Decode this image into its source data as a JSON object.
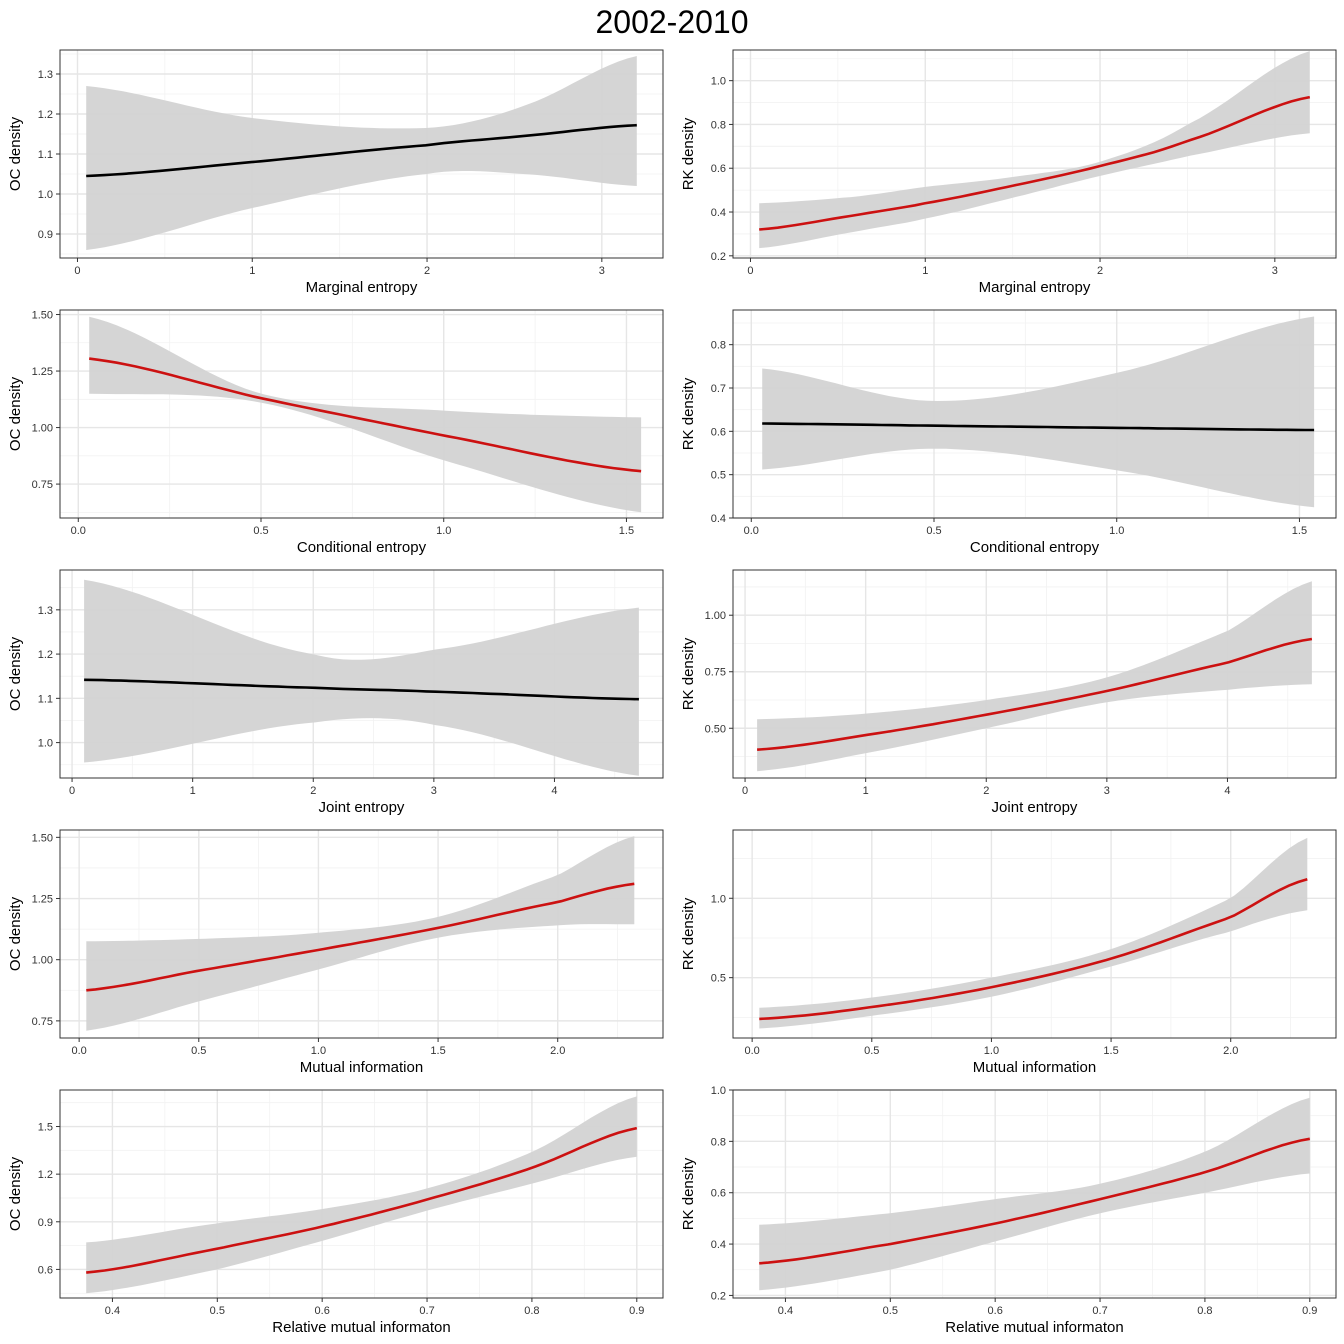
{
  "title": "2002-2010",
  "colors": {
    "significant": "#cc1111",
    "nonsignificant": "#000000",
    "ribbon": "#d3d3d3",
    "grid_major": "#e6e6e6",
    "grid_minor": "#f2f2f2",
    "border": "#333333"
  },
  "chart_data": [
    {
      "type": "line",
      "panel": "marginal-oc",
      "xlabel": "Marginal entropy",
      "ylabel": "OC density",
      "xlim": [
        -0.1,
        3.35
      ],
      "ylim": [
        0.84,
        1.36
      ],
      "xticks": [
        0,
        1,
        2,
        3
      ],
      "xtick_labels": [
        "0",
        "1",
        "2",
        "3"
      ],
      "yticks": [
        0.9,
        1.0,
        1.1,
        1.2,
        1.3
      ],
      "ytick_labels": [
        "0.9",
        "1.0",
        "1.1",
        "1.2",
        "1.3"
      ],
      "line_color": "nonsignificant",
      "x": [
        0.05,
        1.0,
        2.0,
        2.55,
        3.2
      ],
      "y": [
        1.045,
        1.08,
        1.122,
        1.145,
        1.172
      ],
      "lower": [
        0.86,
        0.965,
        1.05,
        1.05,
        1.02
      ],
      "upper": [
        1.27,
        1.19,
        1.165,
        1.22,
        1.345
      ]
    },
    {
      "type": "line",
      "panel": "marginal-rk",
      "xlabel": "Marginal entropy",
      "ylabel": "RK density",
      "xlim": [
        -0.1,
        3.35
      ],
      "ylim": [
        0.19,
        1.14
      ],
      "xticks": [
        0,
        1,
        2,
        3
      ],
      "xtick_labels": [
        "0",
        "1",
        "2",
        "3"
      ],
      "yticks": [
        0.2,
        0.4,
        0.6,
        0.8,
        1.0
      ],
      "ytick_labels": [
        "0.2",
        "0.4",
        "0.6",
        "0.8",
        "1.0"
      ],
      "line_color": "significant",
      "x": [
        0.05,
        0.6,
        1.0,
        1.5,
        2.0,
        2.5,
        3.2
      ],
      "y": [
        0.32,
        0.385,
        0.44,
        0.52,
        0.61,
        0.725,
        0.925
      ],
      "lower": [
        0.235,
        0.31,
        0.37,
        0.465,
        0.565,
        0.655,
        0.76
      ],
      "upper": [
        0.44,
        0.47,
        0.515,
        0.56,
        0.63,
        0.8,
        1.135
      ]
    },
    {
      "type": "line",
      "panel": "conditional-oc",
      "xlabel": "Conditional entropy",
      "ylabel": "OC density",
      "xlim": [
        -0.05,
        1.6
      ],
      "ylim": [
        0.6,
        1.52
      ],
      "xticks": [
        0,
        0.5,
        1.0,
        1.5
      ],
      "xtick_labels": [
        "0.0",
        "0.5",
        "1.0",
        "1.5"
      ],
      "yticks": [
        0.75,
        1.0,
        1.25,
        1.5
      ],
      "ytick_labels": [
        "0.75",
        "1.00",
        "1.25",
        "1.50"
      ],
      "line_color": "significant",
      "x": [
        0.03,
        0.5,
        1.0,
        1.54
      ],
      "y": [
        1.305,
        1.13,
        0.965,
        0.807
      ],
      "lower": [
        1.15,
        1.11,
        0.855,
        0.625
      ],
      "upper": [
        1.49,
        1.15,
        1.075,
        1.045
      ]
    },
    {
      "type": "line",
      "panel": "conditional-rk",
      "xlabel": "Conditional entropy",
      "ylabel": "RK density",
      "xlim": [
        -0.05,
        1.6
      ],
      "ylim": [
        0.4,
        0.88
      ],
      "xticks": [
        0,
        0.5,
        1.0,
        1.5
      ],
      "xtick_labels": [
        "0.0",
        "0.5",
        "1.0",
        "1.5"
      ],
      "yticks": [
        0.4,
        0.5,
        0.6,
        0.7,
        0.8
      ],
      "ytick_labels": [
        "0.4",
        "0.5",
        "0.6",
        "0.7",
        "0.8"
      ],
      "line_color": "nonsignificant",
      "x": [
        0.03,
        0.5,
        1.0,
        1.54
      ],
      "y": [
        0.618,
        0.613,
        0.608,
        0.603
      ],
      "lower": [
        0.512,
        0.56,
        0.51,
        0.425
      ],
      "upper": [
        0.745,
        0.67,
        0.735,
        0.865
      ]
    },
    {
      "type": "line",
      "panel": "joint-oc",
      "xlabel": "Joint entropy",
      "ylabel": "OC density",
      "xlim": [
        -0.1,
        4.9
      ],
      "ylim": [
        0.92,
        1.39
      ],
      "xticks": [
        0,
        1,
        2,
        3,
        4
      ],
      "xtick_labels": [
        "0",
        "1",
        "2",
        "3",
        "4"
      ],
      "yticks": [
        1.0,
        1.1,
        1.2,
        1.3
      ],
      "ytick_labels": [
        "1.0",
        "1.1",
        "1.2",
        "1.3"
      ],
      "line_color": "nonsignificant",
      "x": [
        0.1,
        2.0,
        3.0,
        4.7
      ],
      "y": [
        1.142,
        1.124,
        1.115,
        1.098
      ],
      "lower": [
        0.955,
        1.045,
        1.04,
        0.925
      ],
      "upper": [
        1.368,
        1.2,
        1.21,
        1.305
      ]
    },
    {
      "type": "line",
      "panel": "joint-rk",
      "xlabel": "Joint entropy",
      "ylabel": "RK density",
      "xlim": [
        -0.1,
        4.9
      ],
      "ylim": [
        0.28,
        1.2
      ],
      "xticks": [
        0,
        1,
        2,
        3,
        4
      ],
      "xtick_labels": [
        "0",
        "1",
        "2",
        "3",
        "4"
      ],
      "yticks": [
        0.5,
        0.75,
        1.0
      ],
      "ytick_labels": [
        "0.50",
        "0.75",
        "1.00"
      ],
      "line_color": "significant",
      "x": [
        0.1,
        1.0,
        2.0,
        3.0,
        4.0,
        4.7
      ],
      "y": [
        0.405,
        0.47,
        0.56,
        0.665,
        0.79,
        0.895
      ],
      "lower": [
        0.31,
        0.39,
        0.5,
        0.615,
        0.67,
        0.695
      ],
      "upper": [
        0.54,
        0.565,
        0.625,
        0.725,
        0.93,
        1.15
      ]
    },
    {
      "type": "line",
      "panel": "mutual-oc",
      "xlabel": "Mutual information",
      "ylabel": "OC density",
      "xlim": [
        -0.08,
        2.44
      ],
      "ylim": [
        0.68,
        1.53
      ],
      "xticks": [
        0,
        0.5,
        1.0,
        1.5,
        2.0
      ],
      "xtick_labels": [
        "0.0",
        "0.5",
        "1.0",
        "1.5",
        "2.0"
      ],
      "yticks": [
        0.75,
        1.0,
        1.25,
        1.5
      ],
      "ytick_labels": [
        "0.75",
        "1.00",
        "1.25",
        "1.50"
      ],
      "line_color": "significant",
      "x": [
        0.03,
        0.5,
        1.0,
        1.5,
        2.0,
        2.32
      ],
      "y": [
        0.875,
        0.955,
        1.04,
        1.13,
        1.235,
        1.31
      ],
      "lower": [
        0.71,
        0.83,
        0.96,
        1.09,
        1.14,
        1.145
      ],
      "upper": [
        1.075,
        1.085,
        1.11,
        1.175,
        1.345,
        1.505
      ]
    },
    {
      "type": "line",
      "panel": "mutual-rk",
      "xlabel": "Mutual information",
      "ylabel": "RK density",
      "xlim": [
        -0.08,
        2.44
      ],
      "ylim": [
        0.12,
        1.43
      ],
      "xticks": [
        0,
        0.5,
        1.0,
        1.5,
        2.0
      ],
      "xtick_labels": [
        "0.0",
        "0.5",
        "1.0",
        "1.5",
        "2.0"
      ],
      "yticks": [
        0.5,
        1.0
      ],
      "ytick_labels": [
        "0.5",
        "1.0"
      ],
      "line_color": "significant",
      "x": [
        0.03,
        0.5,
        1.0,
        1.5,
        2.0,
        2.32
      ],
      "y": [
        0.24,
        0.315,
        0.44,
        0.62,
        0.88,
        1.12
      ],
      "lower": [
        0.18,
        0.26,
        0.38,
        0.57,
        0.79,
        0.925
      ],
      "upper": [
        0.31,
        0.375,
        0.5,
        0.68,
        1.0,
        1.38
      ]
    },
    {
      "type": "line",
      "panel": "relative-oc",
      "xlabel": "Relative mutual informaton",
      "ylabel": "OC density",
      "xlim": [
        0.35,
        0.925
      ],
      "ylim": [
        0.42,
        1.73
      ],
      "xticks": [
        0.4,
        0.5,
        0.6,
        0.7,
        0.8,
        0.9
      ],
      "xtick_labels": [
        "0.4",
        "0.5",
        "0.6",
        "0.7",
        "0.8",
        "0.9"
      ],
      "yticks": [
        0.6,
        0.9,
        1.2,
        1.5
      ],
      "ytick_labels": [
        "0.6",
        "0.9",
        "1.2",
        "1.5"
      ],
      "line_color": "significant",
      "x": [
        0.375,
        0.5,
        0.6,
        0.7,
        0.8,
        0.9
      ],
      "y": [
        0.58,
        0.73,
        0.87,
        1.04,
        1.24,
        1.49
      ],
      "lower": [
        0.45,
        0.6,
        0.78,
        0.97,
        1.14,
        1.31
      ],
      "upper": [
        0.77,
        0.89,
        0.98,
        1.11,
        1.34,
        1.69
      ]
    },
    {
      "type": "line",
      "panel": "relative-rk",
      "xlabel": "Relative mutual informaton",
      "ylabel": "RK density",
      "xlim": [
        0.35,
        0.925
      ],
      "ylim": [
        0.19,
        1.0
      ],
      "xticks": [
        0.4,
        0.5,
        0.6,
        0.7,
        0.8,
        0.9
      ],
      "xtick_labels": [
        "0.4",
        "0.5",
        "0.6",
        "0.7",
        "0.8",
        "0.9"
      ],
      "yticks": [
        0.2,
        0.4,
        0.6,
        0.8,
        1.0
      ],
      "ytick_labels": [
        "0.2",
        "0.4",
        "0.6",
        "0.8",
        "1.0"
      ],
      "line_color": "significant",
      "x": [
        0.375,
        0.5,
        0.6,
        0.7,
        0.8,
        0.9
      ],
      "y": [
        0.325,
        0.4,
        0.48,
        0.575,
        0.68,
        0.81
      ],
      "lower": [
        0.22,
        0.3,
        0.41,
        0.52,
        0.6,
        0.675
      ],
      "upper": [
        0.475,
        0.52,
        0.575,
        0.635,
        0.76,
        0.97
      ]
    }
  ]
}
